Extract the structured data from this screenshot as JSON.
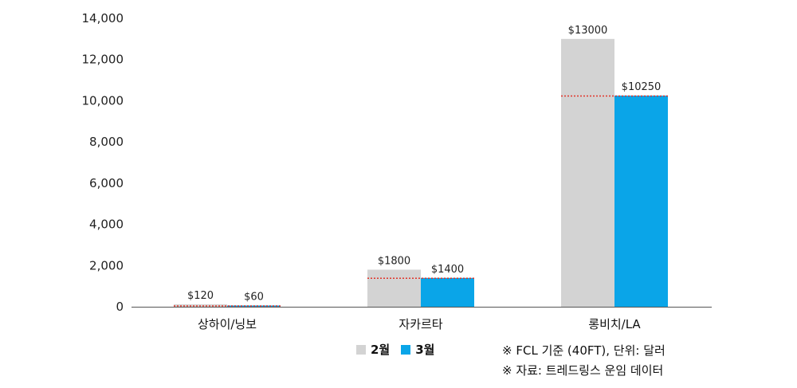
{
  "chart_data": {
    "type": "bar",
    "categories": [
      "상하이/닝보",
      "자카르타",
      "롱비치/LA"
    ],
    "series": [
      {
        "name": "2월",
        "values": [
          120,
          1800,
          13000
        ],
        "labels": [
          "$120",
          "$1800",
          "$13000"
        ],
        "color": "#d3d3d3"
      },
      {
        "name": "3월",
        "values": [
          60,
          1400,
          10250
        ],
        "labels": [
          "$60",
          "$1400",
          "$10250"
        ],
        "color": "#0aa5e8"
      }
    ],
    "ylim": [
      0,
      14000
    ],
    "yticks": [
      0,
      2000,
      4000,
      6000,
      8000,
      10000,
      12000,
      14000
    ],
    "ytick_labels": [
      "0",
      "2,000",
      "4,000",
      "6,000",
      "8,000",
      "10,000",
      "12,000",
      "14,000"
    ],
    "reference_line_color": "#e0342a",
    "grid": false,
    "legend_position": "bottom"
  },
  "notes": [
    "※ FCL 기준 (40FT), 단위: 달러",
    "※ 자료: 트레드링스 운임 데이터"
  ]
}
